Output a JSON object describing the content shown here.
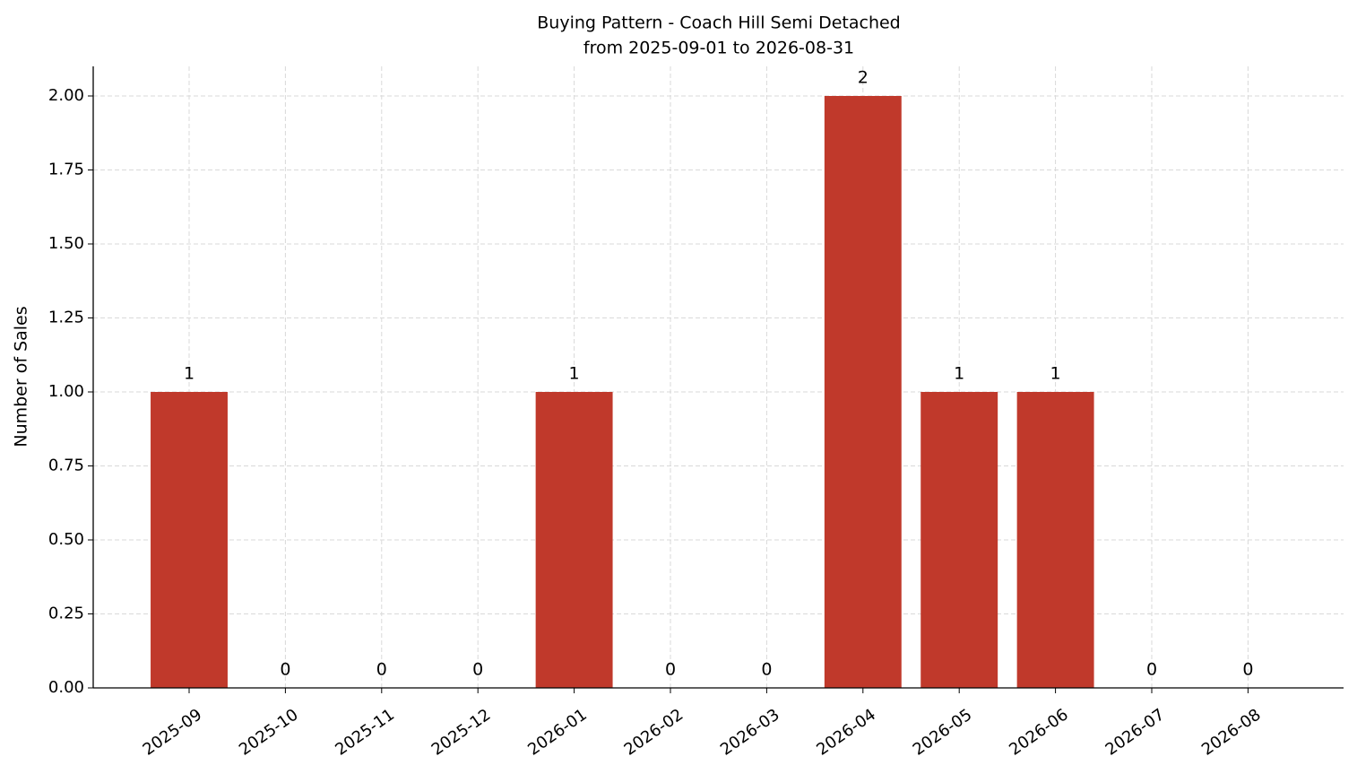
{
  "chart_data": {
    "type": "bar",
    "title": "Buying Pattern - Coach Hill Semi Detached",
    "subtitle": "from 2025-09-01 to 2026-08-31",
    "y_label": "Number of Sales",
    "categories": [
      "2025-09",
      "2025-10",
      "2025-11",
      "2025-12",
      "2026-01",
      "2026-02",
      "2026-03",
      "2026-04",
      "2026-05",
      "2026-06",
      "2026-07",
      "2026-08"
    ],
    "values": [
      1,
      0,
      0,
      0,
      1,
      0,
      0,
      2,
      1,
      1,
      0,
      0
    ],
    "color": "#c0392b",
    "ylim": [
      0,
      2.1
    ],
    "yticks": [
      {
        "value": 0,
        "label": "0.00"
      },
      {
        "value": 0.25,
        "label": "0.25"
      },
      {
        "value": 0.5,
        "label": "0.50"
      },
      {
        "value": 0.75,
        "label": "0.75"
      },
      {
        "value": 1,
        "label": "1.00"
      },
      {
        "value": 1.25,
        "label": "1.25"
      },
      {
        "value": 1.5,
        "label": "1.50"
      },
      {
        "value": 1.75,
        "label": "1.75"
      },
      {
        "value": 2,
        "label": "2.00"
      }
    ],
    "grid": true
  }
}
